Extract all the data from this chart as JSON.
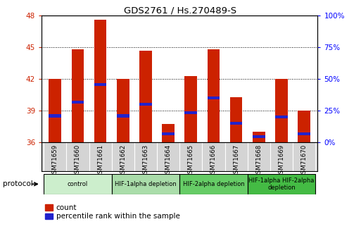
{
  "title": "GDS2761 / Hs.270489-S",
  "samples": [
    "GSM71659",
    "GSM71660",
    "GSM71661",
    "GSM71662",
    "GSM71663",
    "GSM71664",
    "GSM71665",
    "GSM71666",
    "GSM71667",
    "GSM71668",
    "GSM71669",
    "GSM71670"
  ],
  "bar_heights": [
    42.0,
    44.8,
    47.6,
    42.0,
    44.7,
    37.7,
    42.3,
    44.8,
    40.3,
    37.0,
    42.0,
    39.0
  ],
  "blue_positions": [
    38.5,
    39.8,
    41.5,
    38.5,
    39.6,
    36.8,
    38.8,
    40.2,
    37.8,
    36.5,
    38.4,
    36.8
  ],
  "ylim_left": [
    36,
    48
  ],
  "ylim_right": [
    0,
    100
  ],
  "yticks_left": [
    36,
    39,
    42,
    45,
    48
  ],
  "yticks_right": [
    0,
    25,
    50,
    75,
    100
  ],
  "ytick_labels_right": [
    "0%",
    "25%",
    "50%",
    "75%",
    "100%"
  ],
  "bar_color": "#CC2200",
  "blue_color": "#2222CC",
  "bar_width": 0.55,
  "grid_yticks": [
    39,
    42,
    45
  ],
  "groups": [
    {
      "label": "control",
      "start": 0,
      "end": 3,
      "color": "#cceecc"
    },
    {
      "label": "HIF-1alpha depletion",
      "start": 3,
      "end": 6,
      "color": "#aaddaa"
    },
    {
      "label": "HIF-2alpha depletion",
      "start": 6,
      "end": 9,
      "color": "#66cc66"
    },
    {
      "label": "HIF-1alpha HIF-2alpha\ndepletion",
      "start": 9,
      "end": 12,
      "color": "#44bb44"
    }
  ],
  "protocol_label": "protocol",
  "legend_count_label": "count",
  "legend_pct_label": "percentile rank within the sample",
  "plot_bg": "#ffffff",
  "xtick_bg": "#d4d4d4"
}
